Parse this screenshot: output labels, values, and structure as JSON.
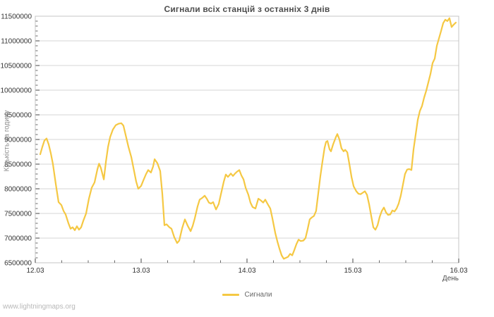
{
  "page": {
    "watermark": "www.lightningmaps.org"
  },
  "colors": {
    "background": "#ffffff",
    "grid": "#d4d4d4",
    "border": "#c4c4c4",
    "tick": "#444444",
    "tick_label": "#333333",
    "title": "#4d4d4d",
    "axis_title": "#8c8c8c",
    "legend_text": "#666666",
    "watermark": "#b8b8b8",
    "line": "#f5c843"
  },
  "chart_data": {
    "type": "line",
    "title": "Сигнали всіх станцій з останніх 3 днів",
    "xlabel": "День",
    "ylabel": "Кількість за годину",
    "x_unit": "days since 12.03 00:00",
    "xlim": [
      0,
      4
    ],
    "ylim": [
      6500000,
      11500000
    ],
    "x_tick_positions": [
      0,
      1,
      2,
      3,
      4
    ],
    "x_tick_labels": [
      "12.03",
      "13.03",
      "14.03",
      "15.03",
      "16.03"
    ],
    "x_minor_step": 0.25,
    "y_tick_step": 500000,
    "y_minor_step": 100000,
    "y_tick_labels": [
      "6500000",
      "7000000",
      "7500000",
      "8000000",
      "8500000",
      "9000000",
      "9500000",
      "10000000",
      "10500000",
      "11000000",
      "11500000"
    ],
    "grid": "horizontal-major",
    "legend_position": "bottom-center",
    "series": [
      {
        "name": "Сигнали",
        "color": "#f5c843",
        "points": [
          [
            0.047,
            8700000
          ],
          [
            0.067,
            8850000
          ],
          [
            0.087,
            8980000
          ],
          [
            0.107,
            9020000
          ],
          [
            0.127,
            8900000
          ],
          [
            0.147,
            8720000
          ],
          [
            0.167,
            8500000
          ],
          [
            0.193,
            8100000
          ],
          [
            0.22,
            7730000
          ],
          [
            0.247,
            7670000
          ],
          [
            0.267,
            7550000
          ],
          [
            0.287,
            7480000
          ],
          [
            0.313,
            7300000
          ],
          [
            0.333,
            7190000
          ],
          [
            0.353,
            7220000
          ],
          [
            0.373,
            7160000
          ],
          [
            0.393,
            7240000
          ],
          [
            0.413,
            7170000
          ],
          [
            0.433,
            7220000
          ],
          [
            0.453,
            7350000
          ],
          [
            0.48,
            7500000
          ],
          [
            0.507,
            7800000
          ],
          [
            0.533,
            8020000
          ],
          [
            0.56,
            8130000
          ],
          [
            0.587,
            8400000
          ],
          [
            0.603,
            8510000
          ],
          [
            0.62,
            8420000
          ],
          [
            0.647,
            8190000
          ],
          [
            0.667,
            8550000
          ],
          [
            0.687,
            8850000
          ],
          [
            0.707,
            9050000
          ],
          [
            0.733,
            9200000
          ],
          [
            0.76,
            9290000
          ],
          [
            0.787,
            9320000
          ],
          [
            0.813,
            9330000
          ],
          [
            0.833,
            9280000
          ],
          [
            0.853,
            9100000
          ],
          [
            0.88,
            8850000
          ],
          [
            0.907,
            8640000
          ],
          [
            0.933,
            8360000
          ],
          [
            0.953,
            8150000
          ],
          [
            0.973,
            8000000
          ],
          [
            1.0,
            8060000
          ],
          [
            1.027,
            8200000
          ],
          [
            1.047,
            8300000
          ],
          [
            1.067,
            8380000
          ],
          [
            1.093,
            8330000
          ],
          [
            1.113,
            8450000
          ],
          [
            1.127,
            8600000
          ],
          [
            1.153,
            8520000
          ],
          [
            1.18,
            8360000
          ],
          [
            1.2,
            7900000
          ],
          [
            1.22,
            7260000
          ],
          [
            1.24,
            7280000
          ],
          [
            1.267,
            7220000
          ],
          [
            1.287,
            7190000
          ],
          [
            1.313,
            7020000
          ],
          [
            1.34,
            6900000
          ],
          [
            1.36,
            6950000
          ],
          [
            1.387,
            7200000
          ],
          [
            1.413,
            7380000
          ],
          [
            1.44,
            7250000
          ],
          [
            1.467,
            7140000
          ],
          [
            1.487,
            7250000
          ],
          [
            1.507,
            7400000
          ],
          [
            1.533,
            7640000
          ],
          [
            1.553,
            7780000
          ],
          [
            1.58,
            7820000
          ],
          [
            1.6,
            7860000
          ],
          [
            1.62,
            7800000
          ],
          [
            1.64,
            7720000
          ],
          [
            1.66,
            7700000
          ],
          [
            1.68,
            7730000
          ],
          [
            1.707,
            7580000
          ],
          [
            1.733,
            7690000
          ],
          [
            1.753,
            7880000
          ],
          [
            1.78,
            8140000
          ],
          [
            1.8,
            8290000
          ],
          [
            1.82,
            8240000
          ],
          [
            1.847,
            8310000
          ],
          [
            1.867,
            8260000
          ],
          [
            1.887,
            8310000
          ],
          [
            1.907,
            8350000
          ],
          [
            1.927,
            8380000
          ],
          [
            1.947,
            8270000
          ],
          [
            1.967,
            8190000
          ],
          [
            1.987,
            8020000
          ],
          [
            2.013,
            7880000
          ],
          [
            2.033,
            7720000
          ],
          [
            2.053,
            7630000
          ],
          [
            2.08,
            7600000
          ],
          [
            2.107,
            7800000
          ],
          [
            2.133,
            7760000
          ],
          [
            2.153,
            7720000
          ],
          [
            2.173,
            7780000
          ],
          [
            2.193,
            7700000
          ],
          [
            2.22,
            7600000
          ],
          [
            2.24,
            7400000
          ],
          [
            2.267,
            7100000
          ],
          [
            2.287,
            6930000
          ],
          [
            2.307,
            6780000
          ],
          [
            2.327,
            6650000
          ],
          [
            2.347,
            6580000
          ],
          [
            2.367,
            6600000
          ],
          [
            2.387,
            6620000
          ],
          [
            2.407,
            6680000
          ],
          [
            2.427,
            6650000
          ],
          [
            2.447,
            6760000
          ],
          [
            2.467,
            6880000
          ],
          [
            2.487,
            6970000
          ],
          [
            2.507,
            6940000
          ],
          [
            2.533,
            6950000
          ],
          [
            2.553,
            7000000
          ],
          [
            2.573,
            7180000
          ],
          [
            2.593,
            7380000
          ],
          [
            2.613,
            7420000
          ],
          [
            2.633,
            7450000
          ],
          [
            2.653,
            7550000
          ],
          [
            2.673,
            7900000
          ],
          [
            2.693,
            8250000
          ],
          [
            2.713,
            8550000
          ],
          [
            2.733,
            8830000
          ],
          [
            2.747,
            8950000
          ],
          [
            2.76,
            8970000
          ],
          [
            2.78,
            8800000
          ],
          [
            2.793,
            8760000
          ],
          [
            2.813,
            8900000
          ],
          [
            2.84,
            9050000
          ],
          [
            2.853,
            9110000
          ],
          [
            2.873,
            9000000
          ],
          [
            2.893,
            8820000
          ],
          [
            2.913,
            8760000
          ],
          [
            2.927,
            8790000
          ],
          [
            2.947,
            8740000
          ],
          [
            2.967,
            8500000
          ],
          [
            2.987,
            8240000
          ],
          [
            3.007,
            8050000
          ],
          [
            3.033,
            7950000
          ],
          [
            3.053,
            7900000
          ],
          [
            3.073,
            7890000
          ],
          [
            3.093,
            7920000
          ],
          [
            3.113,
            7950000
          ],
          [
            3.133,
            7880000
          ],
          [
            3.153,
            7690000
          ],
          [
            3.173,
            7450000
          ],
          [
            3.193,
            7220000
          ],
          [
            3.213,
            7170000
          ],
          [
            3.233,
            7260000
          ],
          [
            3.253,
            7430000
          ],
          [
            3.273,
            7550000
          ],
          [
            3.293,
            7620000
          ],
          [
            3.313,
            7520000
          ],
          [
            3.333,
            7470000
          ],
          [
            3.353,
            7480000
          ],
          [
            3.373,
            7560000
          ],
          [
            3.393,
            7540000
          ],
          [
            3.413,
            7600000
          ],
          [
            3.433,
            7700000
          ],
          [
            3.453,
            7860000
          ],
          [
            3.473,
            8080000
          ],
          [
            3.493,
            8300000
          ],
          [
            3.513,
            8390000
          ],
          [
            3.533,
            8400000
          ],
          [
            3.553,
            8380000
          ],
          [
            3.573,
            8800000
          ],
          [
            3.593,
            9100000
          ],
          [
            3.613,
            9400000
          ],
          [
            3.633,
            9580000
          ],
          [
            3.653,
            9680000
          ],
          [
            3.673,
            9850000
          ],
          [
            3.693,
            9990000
          ],
          [
            3.713,
            10160000
          ],
          [
            3.733,
            10330000
          ],
          [
            3.753,
            10550000
          ],
          [
            3.773,
            10640000
          ],
          [
            3.793,
            10900000
          ],
          [
            3.813,
            11050000
          ],
          [
            3.833,
            11200000
          ],
          [
            3.853,
            11360000
          ],
          [
            3.873,
            11430000
          ],
          [
            3.893,
            11400000
          ],
          [
            3.913,
            11460000
          ],
          [
            3.933,
            11280000
          ],
          [
            3.953,
            11330000
          ],
          [
            3.973,
            11370000
          ]
        ]
      }
    ]
  }
}
